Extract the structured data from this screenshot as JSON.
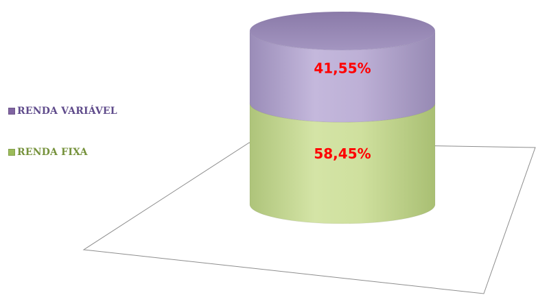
{
  "chart_data": {
    "type": "bar",
    "style": "3d-stacked-cylinder",
    "categories": [
      ""
    ],
    "series": [
      {
        "name": "RENDA FIXA",
        "values": [
          58.45
        ],
        "label": "58,45%",
        "color": "#c9dc94",
        "legend_color": "#9bbb59"
      },
      {
        "name": "RENDA VARIÁVEL",
        "values": [
          41.55
        ],
        "label": "41,55%",
        "color": "#b3a5cc",
        "legend_color": "#8064a2"
      }
    ],
    "ylim": [
      0,
      100
    ],
    "grid": false,
    "legend": "left",
    "data_label_color": "#ff0000"
  },
  "legend": {
    "items": [
      {
        "label": "RENDA VARIÁVEL",
        "color": "#5f4b8b"
      },
      {
        "label": "RENDA FIXA",
        "color": "#76923c"
      }
    ]
  }
}
